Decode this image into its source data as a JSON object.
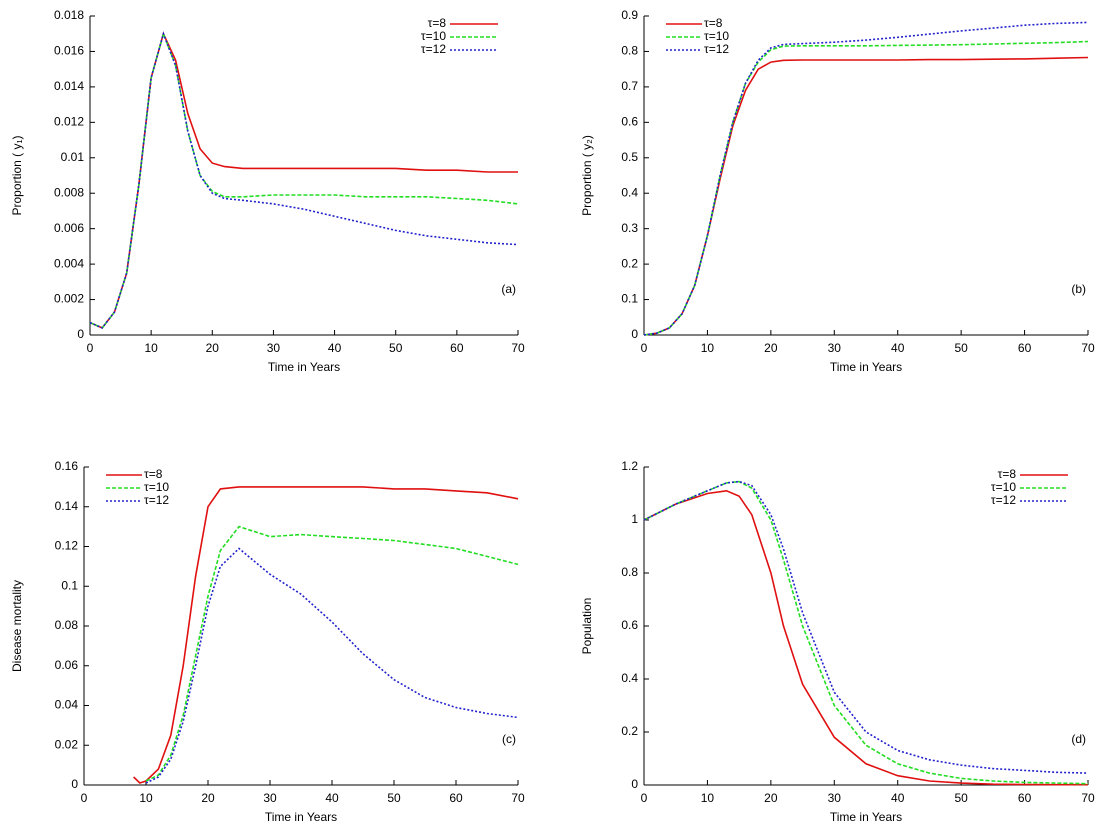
{
  "chart_data": [
    {
      "type": "line",
      "xlabel": "Time in Years",
      "ylabel": "Proportion ( y₁)",
      "annotation": "(a)",
      "legend": "upper right",
      "x": [
        0,
        2,
        4,
        6,
        8,
        10,
        12,
        14,
        16,
        18,
        20,
        22,
        25,
        30,
        35,
        40,
        45,
        50,
        55,
        60,
        65,
        70
      ],
      "xlim": [
        0,
        70
      ],
      "xticks": [
        0,
        10,
        20,
        30,
        40,
        50,
        60,
        70
      ],
      "ylim": [
        0,
        0.018
      ],
      "yticks": [
        0,
        0.002,
        0.004,
        0.006,
        0.008,
        0.01,
        0.012,
        0.014,
        0.016,
        0.018
      ],
      "series": [
        {
          "name": "τ=8",
          "color": "#e01010",
          "style": "solid",
          "values": [
            0.0007,
            0.0004,
            0.0013,
            0.0035,
            0.0085,
            0.0145,
            0.017,
            0.0155,
            0.0125,
            0.0105,
            0.0097,
            0.0095,
            0.0094,
            0.0094,
            0.0094,
            0.0094,
            0.0094,
            0.0094,
            0.0093,
            0.0093,
            0.0092,
            0.0092
          ]
        },
        {
          "name": "τ=10",
          "color": "#22dd22",
          "style": "dashed",
          "values": [
            0.0007,
            0.0004,
            0.0013,
            0.0035,
            0.0085,
            0.0145,
            0.017,
            0.0152,
            0.0115,
            0.009,
            0.0081,
            0.0078,
            0.0078,
            0.0079,
            0.0079,
            0.0079,
            0.0078,
            0.0078,
            0.0078,
            0.0077,
            0.0076,
            0.0074
          ]
        },
        {
          "name": "τ=12",
          "color": "#2222cc",
          "style": "dotted",
          "values": [
            0.0007,
            0.0004,
            0.0013,
            0.0035,
            0.0085,
            0.0145,
            0.017,
            0.0152,
            0.0115,
            0.009,
            0.008,
            0.0077,
            0.0076,
            0.0074,
            0.0071,
            0.0067,
            0.0063,
            0.0059,
            0.0056,
            0.0054,
            0.0052,
            0.0051
          ]
        }
      ]
    },
    {
      "type": "line",
      "xlabel": "Time in Years",
      "ylabel": "Proportion ( y₂)",
      "annotation": "(b)",
      "legend": "upper left",
      "x": [
        0,
        2,
        4,
        6,
        8,
        10,
        12,
        14,
        16,
        18,
        20,
        22,
        25,
        30,
        35,
        40,
        45,
        50,
        55,
        60,
        65,
        70
      ],
      "xlim": [
        0,
        70
      ],
      "xticks": [
        0,
        10,
        20,
        30,
        40,
        50,
        60,
        70
      ],
      "ylim": [
        0,
        0.9
      ],
      "yticks": [
        0,
        0.1,
        0.2,
        0.3,
        0.4,
        0.5,
        0.6,
        0.7,
        0.8,
        0.9
      ],
      "series": [
        {
          "name": "τ=8",
          "color": "#e01010",
          "style": "solid",
          "values": [
            0,
            0.005,
            0.02,
            0.06,
            0.14,
            0.28,
            0.44,
            0.59,
            0.69,
            0.75,
            0.77,
            0.775,
            0.776,
            0.776,
            0.776,
            0.776,
            0.777,
            0.777,
            0.778,
            0.779,
            0.781,
            0.783
          ]
        },
        {
          "name": "τ=10",
          "color": "#22dd22",
          "style": "dashed",
          "values": [
            0,
            0.005,
            0.02,
            0.06,
            0.14,
            0.28,
            0.45,
            0.6,
            0.71,
            0.77,
            0.805,
            0.815,
            0.816,
            0.816,
            0.816,
            0.817,
            0.818,
            0.819,
            0.821,
            0.823,
            0.825,
            0.828
          ]
        },
        {
          "name": "τ=12",
          "color": "#2222cc",
          "style": "dotted",
          "values": [
            0,
            0.005,
            0.02,
            0.06,
            0.14,
            0.28,
            0.45,
            0.6,
            0.71,
            0.775,
            0.81,
            0.82,
            0.822,
            0.826,
            0.832,
            0.84,
            0.849,
            0.858,
            0.866,
            0.874,
            0.879,
            0.882
          ]
        }
      ]
    },
    {
      "type": "line",
      "xlabel": "Time in Years",
      "ylabel": "Disease mortality",
      "annotation": "(c)",
      "legend": "upper left",
      "x": [
        8,
        9,
        10,
        12,
        14,
        16,
        18,
        20,
        22,
        25,
        30,
        35,
        40,
        45,
        50,
        55,
        60,
        65,
        70
      ],
      "xlim": [
        0,
        70
      ],
      "xticks": [
        0,
        10,
        20,
        30,
        40,
        50,
        60,
        70
      ],
      "ylim": [
        0,
        0.16
      ],
      "yticks": [
        0,
        0.02,
        0.04,
        0.06,
        0.08,
        0.1,
        0.12,
        0.14,
        0.16
      ],
      "series": [
        {
          "name": "τ=8",
          "color": "#e01010",
          "style": "solid",
          "values": [
            0.004,
            0.001,
            0.002,
            0.008,
            0.025,
            0.06,
            0.105,
            0.14,
            0.149,
            0.15,
            0.15,
            0.15,
            0.15,
            0.15,
            0.149,
            0.149,
            0.148,
            0.147,
            0.144
          ]
        },
        {
          "name": "τ=10",
          "color": "#22dd22",
          "style": "dashed",
          "values": [
            null,
            null,
            0.002,
            0.005,
            0.015,
            0.035,
            0.065,
            0.095,
            0.118,
            0.13,
            0.125,
            0.126,
            0.125,
            0.124,
            0.123,
            0.121,
            0.119,
            0.115,
            0.111
          ]
        },
        {
          "name": "τ=12",
          "color": "#2222cc",
          "style": "dotted",
          "values": [
            null,
            null,
            0.001,
            0.004,
            0.013,
            0.032,
            0.06,
            0.09,
            0.11,
            0.119,
            0.106,
            0.096,
            0.082,
            0.066,
            0.053,
            0.044,
            0.039,
            0.036,
            0.034
          ]
        }
      ]
    },
    {
      "type": "line",
      "xlabel": "Time in Years",
      "ylabel": "Population",
      "annotation": "(d)",
      "legend": "upper right",
      "x": [
        0,
        5,
        10,
        13,
        15,
        17,
        20,
        22,
        25,
        30,
        35,
        40,
        45,
        50,
        55,
        60,
        65,
        70
      ],
      "xlim": [
        0,
        70
      ],
      "xticks": [
        0,
        10,
        20,
        30,
        40,
        50,
        60,
        70
      ],
      "ylim": [
        0,
        1.2
      ],
      "yticks": [
        0,
        0.2,
        0.4,
        0.6,
        0.8,
        1,
        1.2
      ],
      "series": [
        {
          "name": "τ=8",
          "color": "#e01010",
          "style": "solid",
          "values": [
            1,
            1.06,
            1.1,
            1.11,
            1.09,
            1.02,
            0.8,
            0.6,
            0.38,
            0.18,
            0.08,
            0.035,
            0.015,
            0.007,
            0.003,
            0.002,
            0.001,
            0.001
          ]
        },
        {
          "name": "τ=10",
          "color": "#22dd22",
          "style": "dashed",
          "values": [
            1,
            1.06,
            1.11,
            1.14,
            1.145,
            1.12,
            1.0,
            0.85,
            0.6,
            0.3,
            0.15,
            0.08,
            0.045,
            0.025,
            0.015,
            0.01,
            0.007,
            0.005
          ]
        },
        {
          "name": "τ=12",
          "color": "#2222cc",
          "style": "dotted",
          "values": [
            1,
            1.06,
            1.11,
            1.14,
            1.145,
            1.13,
            1.02,
            0.89,
            0.65,
            0.35,
            0.2,
            0.13,
            0.095,
            0.075,
            0.062,
            0.055,
            0.048,
            0.045
          ]
        }
      ]
    }
  ]
}
